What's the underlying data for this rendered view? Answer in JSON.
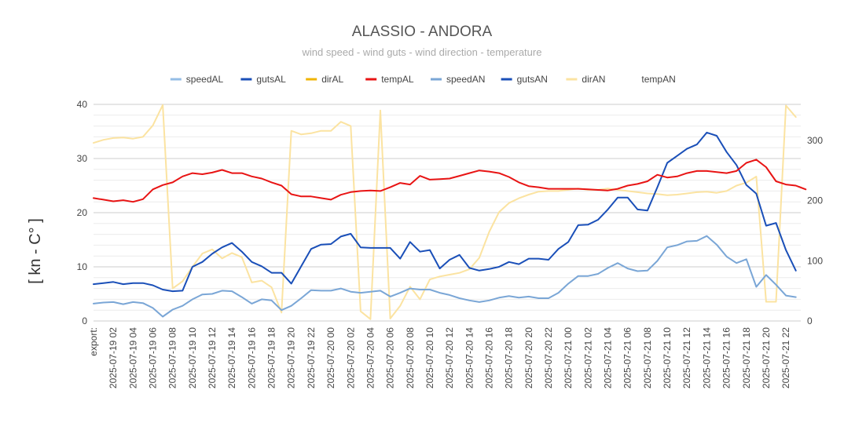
{
  "chart_data": {
    "type": "line",
    "title": "ALASSIO - ANDORA",
    "subtitle": "wind speed - wind guts - wind direction - temperature",
    "ylabel": "[ kn - C° ]",
    "ylim": [
      0,
      40
    ],
    "y_ticks": [
      0,
      10,
      20,
      30,
      40
    ],
    "y2lim": [
      0,
      360
    ],
    "y2_ticks": [
      0,
      100,
      200,
      300
    ],
    "grid": true,
    "legend_position": "top",
    "x_labels": [
      "export:",
      "2025-07-19  02",
      "2025-07-19  04",
      "2025-07-19  06",
      "2025-07-19  08",
      "2025-07-19  10",
      "2025-07-19  12",
      "2025-07-19  14",
      "2025-07-19  16",
      "2025-07-19  18",
      "2025-07-19  20",
      "2025-07-19  22",
      "2025-07-20  00",
      "2025-07-20  02",
      "2025-07-20  04",
      "2025-07-20  06",
      "2025-07-20  08",
      "2025-07-20  10",
      "2025-07-20  12",
      "2025-07-20  14",
      "2025-07-20  16",
      "2025-07-20  18",
      "2025-07-20  20",
      "2025-07-20  22",
      "2025-07-21  00",
      "2025-07-21  02",
      "2025-07-21  04",
      "2025-07-21  06",
      "2025-07-21  08",
      "2025-07-21  10",
      "2025-07-21  12",
      "2025-07-21  14",
      "2025-07-21  16",
      "2025-07-21  18",
      "2025-07-21  20",
      "2025-07-21  22"
    ],
    "x_hours": [
      0,
      2,
      4,
      6,
      8,
      10,
      12,
      14,
      16,
      18,
      20,
      22,
      24,
      26,
      28,
      30,
      32,
      34,
      36,
      38,
      40,
      42,
      44,
      46,
      48,
      50,
      52,
      54,
      56,
      58,
      60,
      62,
      64,
      66,
      68,
      70
    ],
    "x_range": [
      0,
      71.5
    ],
    "series": [
      {
        "name": "speedAL",
        "color": "#94bde6",
        "axis": "left",
        "points": []
      },
      {
        "name": "gutsAL",
        "color": "#1a4fb8",
        "axis": "left",
        "points": []
      },
      {
        "name": "dirAL",
        "color": "#f0b400",
        "axis": "right",
        "points": []
      },
      {
        "name": "tempAL",
        "color": "#e81414",
        "axis": "left",
        "points": [
          [
            0,
            22.7
          ],
          [
            1,
            22.4
          ],
          [
            2,
            22.1
          ],
          [
            3,
            22.3
          ],
          [
            4,
            22.0
          ],
          [
            5,
            22.5
          ],
          [
            6,
            24.3
          ],
          [
            7,
            25.1
          ],
          [
            8,
            25.6
          ],
          [
            9,
            26.7
          ],
          [
            10,
            27.3
          ],
          [
            11,
            27.1
          ],
          [
            12,
            27.4
          ],
          [
            13,
            27.9
          ],
          [
            14,
            27.3
          ],
          [
            15,
            27.3
          ],
          [
            16,
            26.7
          ],
          [
            17,
            26.3
          ],
          [
            18,
            25.6
          ],
          [
            19,
            25.0
          ],
          [
            20,
            23.4
          ],
          [
            21,
            23.0
          ],
          [
            22,
            23.0
          ],
          [
            23,
            22.7
          ],
          [
            24,
            22.4
          ],
          [
            25,
            23.3
          ],
          [
            26,
            23.8
          ],
          [
            27,
            24.0
          ],
          [
            28,
            24.1
          ],
          [
            29,
            24.0
          ],
          [
            30,
            24.7
          ],
          [
            31,
            25.5
          ],
          [
            32,
            25.2
          ],
          [
            33,
            26.8
          ],
          [
            34,
            26.1
          ],
          [
            35,
            26.2
          ],
          [
            36,
            26.3
          ],
          [
            37,
            26.8
          ],
          [
            38,
            27.3
          ],
          [
            39,
            27.8
          ],
          [
            40,
            27.6
          ],
          [
            41,
            27.3
          ],
          [
            42,
            26.6
          ],
          [
            43,
            25.6
          ],
          [
            44,
            24.9
          ],
          [
            45,
            24.7
          ],
          [
            46,
            24.4
          ],
          [
            47,
            24.4
          ],
          [
            48,
            24.4
          ],
          [
            49,
            24.4
          ],
          [
            50,
            24.3
          ],
          [
            51,
            24.2
          ],
          [
            52,
            24.1
          ],
          [
            53,
            24.4
          ],
          [
            54,
            25.0
          ],
          [
            55,
            25.3
          ],
          [
            56,
            25.8
          ],
          [
            57,
            27.0
          ],
          [
            58,
            26.5
          ],
          [
            59,
            26.7
          ],
          [
            60,
            27.3
          ],
          [
            61,
            27.7
          ],
          [
            62,
            27.7
          ],
          [
            63,
            27.5
          ],
          [
            64,
            27.3
          ],
          [
            65,
            27.7
          ],
          [
            66,
            29.2
          ],
          [
            67,
            29.8
          ],
          [
            68,
            28.4
          ],
          [
            69,
            25.8
          ],
          [
            70,
            25.2
          ],
          [
            71,
            25.0
          ],
          [
            72,
            24.3
          ]
        ]
      },
      {
        "name": "speedAN",
        "color": "#7aa6d6",
        "axis": "left",
        "points": [
          [
            0,
            3.2
          ],
          [
            1,
            3.4
          ],
          [
            2,
            3.5
          ],
          [
            3,
            3.1
          ],
          [
            4,
            3.5
          ],
          [
            5,
            3.3
          ],
          [
            6,
            2.4
          ],
          [
            7,
            0.8
          ],
          [
            8,
            2.1
          ],
          [
            9,
            2.8
          ],
          [
            10,
            4.0
          ],
          [
            11,
            4.9
          ],
          [
            12,
            5.0
          ],
          [
            13,
            5.6
          ],
          [
            14,
            5.5
          ],
          [
            15,
            4.4
          ],
          [
            16,
            3.2
          ],
          [
            17,
            4.0
          ],
          [
            18,
            3.8
          ],
          [
            19,
            2.0
          ],
          [
            20,
            2.8
          ],
          [
            21,
            4.2
          ],
          [
            22,
            5.7
          ],
          [
            23,
            5.6
          ],
          [
            24,
            5.6
          ],
          [
            25,
            6.0
          ],
          [
            26,
            5.4
          ],
          [
            27,
            5.2
          ],
          [
            28,
            5.4
          ],
          [
            29,
            5.6
          ],
          [
            30,
            4.5
          ],
          [
            31,
            5.2
          ],
          [
            32,
            6.0
          ],
          [
            33,
            5.8
          ],
          [
            34,
            5.8
          ],
          [
            35,
            5.2
          ],
          [
            36,
            4.8
          ],
          [
            37,
            4.2
          ],
          [
            38,
            3.8
          ],
          [
            39,
            3.5
          ],
          [
            40,
            3.8
          ],
          [
            41,
            4.3
          ],
          [
            42,
            4.6
          ],
          [
            43,
            4.3
          ],
          [
            44,
            4.5
          ],
          [
            45,
            4.2
          ],
          [
            46,
            4.2
          ],
          [
            47,
            5.2
          ],
          [
            48,
            6.9
          ],
          [
            49,
            8.3
          ],
          [
            50,
            8.3
          ],
          [
            51,
            8.7
          ],
          [
            52,
            9.8
          ],
          [
            53,
            10.7
          ],
          [
            54,
            9.7
          ],
          [
            55,
            9.2
          ],
          [
            56,
            9.3
          ],
          [
            57,
            11.1
          ],
          [
            58,
            13.6
          ],
          [
            59,
            14.0
          ],
          [
            60,
            14.7
          ],
          [
            61,
            14.8
          ],
          [
            62,
            15.7
          ],
          [
            63,
            14.1
          ],
          [
            64,
            11.9
          ],
          [
            65,
            10.7
          ],
          [
            66,
            11.4
          ],
          [
            67,
            6.3
          ],
          [
            68,
            8.5
          ],
          [
            69,
            6.7
          ],
          [
            70,
            4.7
          ],
          [
            71,
            4.4
          ]
        ]
      },
      {
        "name": "gutsAN",
        "color": "#1a4fb8",
        "axis": "left",
        "points": [
          [
            0,
            6.8
          ],
          [
            1,
            7.0
          ],
          [
            2,
            7.2
          ],
          [
            3,
            6.8
          ],
          [
            4,
            7.0
          ],
          [
            5,
            7.0
          ],
          [
            6,
            6.6
          ],
          [
            7,
            5.8
          ],
          [
            8,
            5.5
          ],
          [
            9,
            5.6
          ],
          [
            10,
            10.0
          ],
          [
            11,
            10.9
          ],
          [
            12,
            12.4
          ],
          [
            13,
            13.6
          ],
          [
            14,
            14.4
          ],
          [
            15,
            12.8
          ],
          [
            16,
            10.9
          ],
          [
            17,
            10.1
          ],
          [
            18,
            8.9
          ],
          [
            19,
            8.9
          ],
          [
            20,
            6.9
          ],
          [
            21,
            10.1
          ],
          [
            22,
            13.3
          ],
          [
            23,
            14.1
          ],
          [
            24,
            14.2
          ],
          [
            25,
            15.6
          ],
          [
            26,
            16.1
          ],
          [
            27,
            13.6
          ],
          [
            28,
            13.5
          ],
          [
            29,
            13.5
          ],
          [
            30,
            13.5
          ],
          [
            31,
            11.5
          ],
          [
            32,
            14.6
          ],
          [
            33,
            12.8
          ],
          [
            34,
            13.1
          ],
          [
            35,
            9.7
          ],
          [
            36,
            11.3
          ],
          [
            37,
            12.2
          ],
          [
            38,
            9.8
          ],
          [
            39,
            9.3
          ],
          [
            40,
            9.6
          ],
          [
            41,
            10.0
          ],
          [
            42,
            10.9
          ],
          [
            43,
            10.5
          ],
          [
            44,
            11.5
          ],
          [
            45,
            11.5
          ],
          [
            46,
            11.3
          ],
          [
            47,
            13.3
          ],
          [
            48,
            14.6
          ],
          [
            49,
            17.7
          ],
          [
            50,
            17.8
          ],
          [
            51,
            18.7
          ],
          [
            52,
            20.6
          ],
          [
            53,
            22.8
          ],
          [
            54,
            22.8
          ],
          [
            55,
            20.6
          ],
          [
            56,
            20.4
          ],
          [
            57,
            24.7
          ],
          [
            58,
            29.2
          ],
          [
            59,
            30.5
          ],
          [
            60,
            31.8
          ],
          [
            61,
            32.6
          ],
          [
            62,
            34.8
          ],
          [
            63,
            34.2
          ],
          [
            64,
            31.2
          ],
          [
            65,
            28.8
          ],
          [
            66,
            25.1
          ],
          [
            67,
            23.5
          ],
          [
            68,
            17.6
          ],
          [
            69,
            18.1
          ],
          [
            70,
            13.1
          ],
          [
            71,
            9.3
          ]
        ]
      },
      {
        "name": "dirAN",
        "color": "#fbe3a1",
        "axis": "right",
        "points": [
          [
            0,
            296
          ],
          [
            1,
            301
          ],
          [
            2,
            304
          ],
          [
            3,
            305
          ],
          [
            4,
            303
          ],
          [
            5,
            306
          ],
          [
            6,
            325
          ],
          [
            7,
            359
          ],
          [
            8,
            54
          ],
          [
            9,
            66
          ],
          [
            10,
            90
          ],
          [
            11,
            112
          ],
          [
            12,
            119
          ],
          [
            13,
            104
          ],
          [
            14,
            113
          ],
          [
            15,
            106
          ],
          [
            16,
            64
          ],
          [
            17,
            67
          ],
          [
            18,
            56
          ],
          [
            19,
            14
          ],
          [
            20,
            316
          ],
          [
            21,
            310
          ],
          [
            22,
            312
          ],
          [
            23,
            316
          ],
          [
            24,
            316
          ],
          [
            25,
            331
          ],
          [
            26,
            324
          ],
          [
            27,
            16
          ],
          [
            28,
            3
          ],
          [
            29,
            350
          ],
          [
            30,
            4
          ],
          [
            31,
            25
          ],
          [
            32,
            57
          ],
          [
            33,
            36
          ],
          [
            34,
            69
          ],
          [
            35,
            74
          ],
          [
            36,
            77
          ],
          [
            37,
            80
          ],
          [
            38,
            86
          ],
          [
            39,
            105
          ],
          [
            40,
            148
          ],
          [
            41,
            181
          ],
          [
            42,
            196
          ],
          [
            43,
            204
          ],
          [
            44,
            210
          ],
          [
            45,
            215
          ],
          [
            46,
            216
          ],
          [
            47,
            216
          ],
          [
            48,
            218
          ],
          [
            49,
            220
          ],
          [
            50,
            218
          ],
          [
            51,
            218
          ],
          [
            52,
            220
          ],
          [
            53,
            218
          ],
          [
            54,
            216
          ],
          [
            55,
            214
          ],
          [
            56,
            212
          ],
          [
            57,
            211
          ],
          [
            58,
            209
          ],
          [
            59,
            210
          ],
          [
            60,
            212
          ],
          [
            61,
            214
          ],
          [
            62,
            215
          ],
          [
            63,
            213
          ],
          [
            64,
            216
          ],
          [
            65,
            225
          ],
          [
            66,
            230
          ],
          [
            67,
            240
          ],
          [
            68,
            32
          ],
          [
            69,
            32
          ],
          [
            70,
            358
          ],
          [
            71,
            339
          ]
        ]
      },
      {
        "name": "tempAN",
        "color": "#ffffff",
        "axis": "left",
        "points": []
      }
    ]
  }
}
